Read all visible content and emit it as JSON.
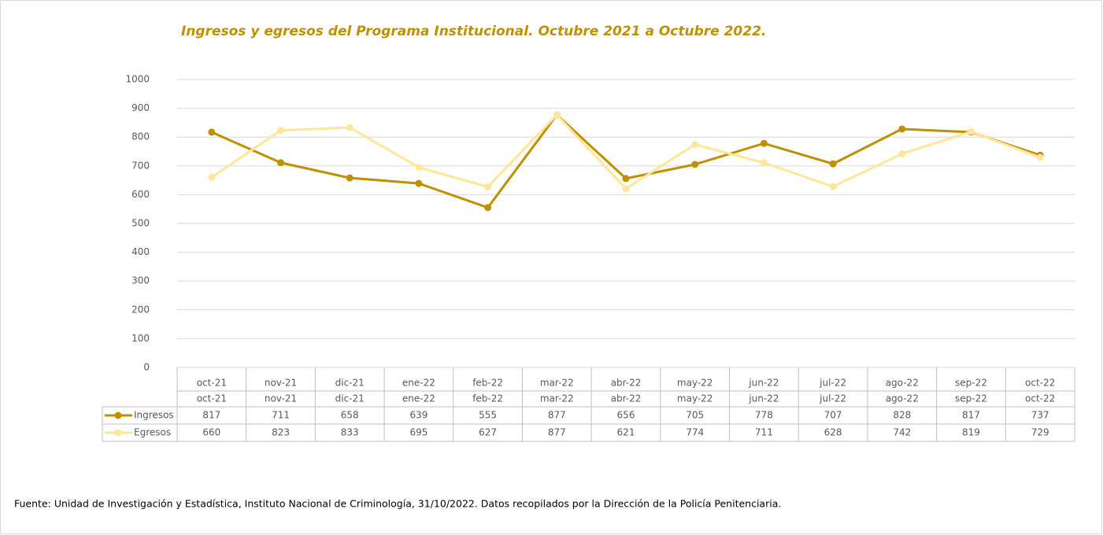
{
  "chart_data": {
    "type": "line",
    "title": "Ingresos y egresos del Programa Institucional.  Octubre 2021 a Octubre 2022.",
    "categories": [
      "oct-21",
      "nov-21",
      "dic-21",
      "ene-22",
      "feb-22",
      "mar-22",
      "abr-22",
      "may-22",
      "jun-22",
      "jul-22",
      "ago-22",
      "sep-22",
      "oct-22"
    ],
    "series": [
      {
        "name": "Ingresos",
        "color": "#bf9000",
        "values": [
          817,
          711,
          658,
          639,
          555,
          877,
          656,
          705,
          778,
          707,
          828,
          817,
          737
        ]
      },
      {
        "name": "Egresos",
        "color": "#ffe699",
        "values": [
          660,
          823,
          833,
          695,
          627,
          877,
          621,
          774,
          711,
          628,
          742,
          819,
          729
        ]
      }
    ],
    "ylim": [
      0,
      1000
    ],
    "yticks": [
      0,
      100,
      200,
      300,
      400,
      500,
      600,
      700,
      800,
      900,
      1000
    ],
    "grid": true,
    "source": "Fuente: Unidad de Investigación y Estadística, Instituto Nacional de Criminología, 31/10/2022. Datos recopilados por la Dirección de la Policía Penitenciaria."
  }
}
